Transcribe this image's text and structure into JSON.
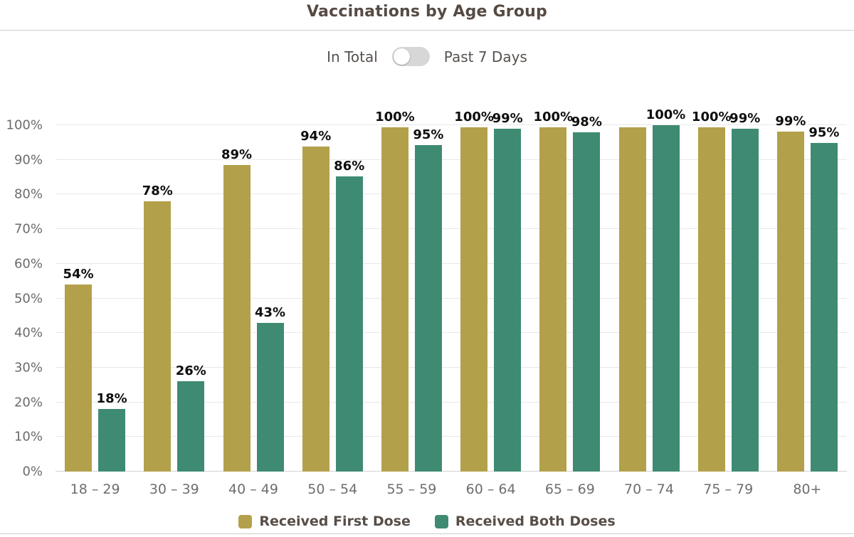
{
  "title": "Vaccinations by Age Group",
  "toggle": {
    "left_label": "In Total",
    "right_label": "Past 7 Days",
    "state": "left"
  },
  "colors": {
    "first_dose": "#b2a04b",
    "both_doses": "#3f8a72",
    "title_text": "#564b44",
    "axis_text": "#6b6b6b",
    "data_label_text": "#0e0e0e",
    "legend_text": "#584e48",
    "gridline": "#e8e8e8",
    "divider": "#cccccc",
    "toggle_track": "#d7d7d7",
    "toggle_knob": "#ffffff"
  },
  "chart_data": {
    "type": "bar",
    "title": "Vaccinations by Age Group",
    "categories": [
      "18 – 29",
      "30 – 39",
      "40 – 49",
      "50 – 54",
      "55 – 59",
      "60 – 64",
      "65 – 69",
      "70 – 74",
      "75 – 79",
      "80+"
    ],
    "series": [
      {
        "name": "Received First Dose",
        "color": "#b2a04b",
        "values": [
          54,
          78,
          89,
          94,
          100,
          100,
          100,
          100,
          100,
          99
        ],
        "labels": [
          "54%",
          "78%",
          "89%",
          "94%",
          "100%",
          "100%",
          "100%",
          "",
          "100%",
          "99%"
        ],
        "bar_heights_pct": [
          54,
          78,
          88.5,
          93.8,
          99.3,
          99.4,
          99.4,
          99.4,
          99.4,
          98.1
        ]
      },
      {
        "name": "Received Both Doses",
        "color": "#3f8a72",
        "values": [
          18,
          26,
          43,
          86,
          95,
          99,
          98,
          100,
          99,
          95
        ],
        "labels": [
          "18%",
          "26%",
          "43%",
          "86%",
          "95%",
          "99%",
          "98%",
          "100%",
          "99%",
          "95%"
        ],
        "bar_heights_pct": [
          18,
          26,
          43,
          85.2,
          94.2,
          99,
          97.9,
          100,
          99,
          94.9
        ]
      }
    ],
    "xlabel": "",
    "ylabel": "",
    "y_ticks": [
      "0%",
      "10%",
      "20%",
      "30%",
      "40%",
      "50%",
      "60%",
      "70%",
      "80%",
      "90%",
      "100%"
    ],
    "ylim": [
      0,
      100
    ],
    "grid": true,
    "legend_position": "bottom"
  },
  "legend": [
    {
      "label": "Received First Dose",
      "color": "#b2a04b"
    },
    {
      "label": "Received Both Doses",
      "color": "#3f8a72"
    }
  ]
}
